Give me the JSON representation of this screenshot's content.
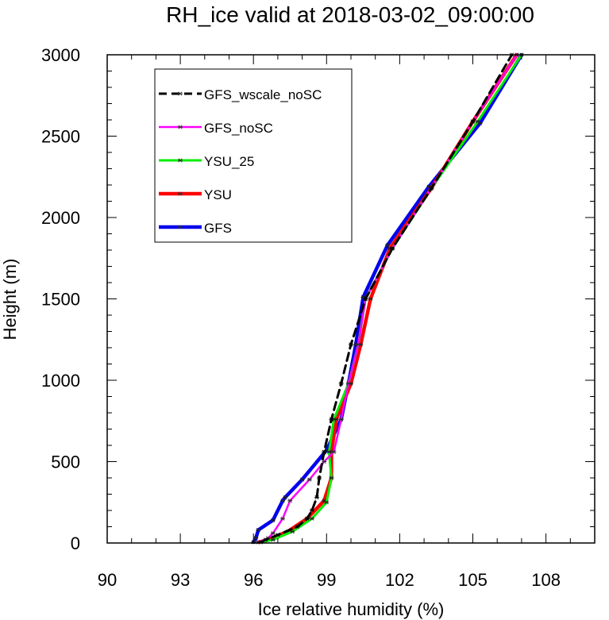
{
  "chart_data": {
    "type": "line",
    "title": "RH_ice valid at 2018-03-02_09:00:00",
    "xlabel": "Ice relative humidity (%)",
    "ylabel": "Height (m)",
    "xlim": [
      90,
      110
    ],
    "ylim": [
      0,
      3000
    ],
    "xticks": [
      90,
      93,
      96,
      99,
      102,
      105,
      108
    ],
    "yticks": [
      0,
      500,
      1000,
      1500,
      2000,
      2500,
      3000
    ],
    "legend_position": "top-left",
    "grid": false,
    "series": [
      {
        "name": "GFS_wscale_noSC",
        "color": "#000000",
        "dashed": true,
        "points": [
          [
            96.3,
            5
          ],
          [
            96.5,
            20
          ],
          [
            97.0,
            50
          ],
          [
            97.8,
            100
          ],
          [
            98.2,
            150
          ],
          [
            98.4,
            200
          ],
          [
            98.6,
            280
          ],
          [
            98.7,
            400
          ],
          [
            98.9,
            560
          ],
          [
            99.2,
            760
          ],
          [
            99.6,
            980
          ],
          [
            100.0,
            1220
          ],
          [
            100.6,
            1500
          ],
          [
            101.7,
            1810
          ],
          [
            103.3,
            2180
          ],
          [
            105.0,
            2590
          ],
          [
            106.6,
            3000
          ]
        ]
      },
      {
        "name": "GFS_noSC",
        "color": "#ff00ff",
        "dashed": false,
        "points": [
          [
            96.2,
            5
          ],
          [
            96.6,
            30
          ],
          [
            96.8,
            60
          ],
          [
            97.2,
            150
          ],
          [
            97.5,
            260
          ],
          [
            98.3,
            390
          ],
          [
            98.9,
            500
          ],
          [
            99.3,
            560
          ],
          [
            99.6,
            760
          ],
          [
            99.9,
            980
          ],
          [
            100.3,
            1220
          ],
          [
            100.6,
            1500
          ],
          [
            101.7,
            1810
          ],
          [
            103.3,
            2180
          ],
          [
            105.0,
            2590
          ],
          [
            106.8,
            3000
          ]
        ]
      },
      {
        "name": "YSU_25",
        "color": "#00ee00",
        "dashed": false,
        "points": [
          [
            96.3,
            5
          ],
          [
            96.8,
            20
          ],
          [
            97.6,
            70
          ],
          [
            98.4,
            150
          ],
          [
            99.0,
            250
          ],
          [
            99.2,
            400
          ],
          [
            99.1,
            560
          ],
          [
            99.3,
            760
          ],
          [
            99.9,
            980
          ],
          [
            100.3,
            1220
          ],
          [
            100.6,
            1500
          ],
          [
            101.7,
            1810
          ],
          [
            103.3,
            2180
          ],
          [
            105.2,
            2590
          ],
          [
            107.0,
            3000
          ]
        ]
      },
      {
        "name": "YSU",
        "color": "#ff0000",
        "dashed": false,
        "points": [
          [
            96.2,
            5
          ],
          [
            96.6,
            20
          ],
          [
            97.4,
            70
          ],
          [
            98.2,
            150
          ],
          [
            98.9,
            260
          ],
          [
            99.2,
            400
          ],
          [
            99.2,
            560
          ],
          [
            99.4,
            760
          ],
          [
            100.0,
            980
          ],
          [
            100.4,
            1220
          ],
          [
            100.8,
            1500
          ],
          [
            101.6,
            1810
          ],
          [
            103.3,
            2180
          ],
          [
            105.0,
            2590
          ],
          [
            106.8,
            3000
          ]
        ]
      },
      {
        "name": "GFS",
        "color": "#0000ee",
        "dashed": false,
        "points": [
          [
            96.0,
            5
          ],
          [
            96.1,
            30
          ],
          [
            96.2,
            80
          ],
          [
            96.8,
            140
          ],
          [
            97.2,
            260
          ],
          [
            97.3,
            280
          ],
          [
            98.0,
            390
          ],
          [
            99.0,
            570
          ],
          [
            99.6,
            760
          ],
          [
            99.9,
            980
          ],
          [
            100.2,
            1220
          ],
          [
            100.5,
            1510
          ],
          [
            101.5,
            1830
          ],
          [
            103.2,
            2190
          ],
          [
            105.3,
            2580
          ],
          [
            107.0,
            3000
          ]
        ]
      }
    ]
  }
}
